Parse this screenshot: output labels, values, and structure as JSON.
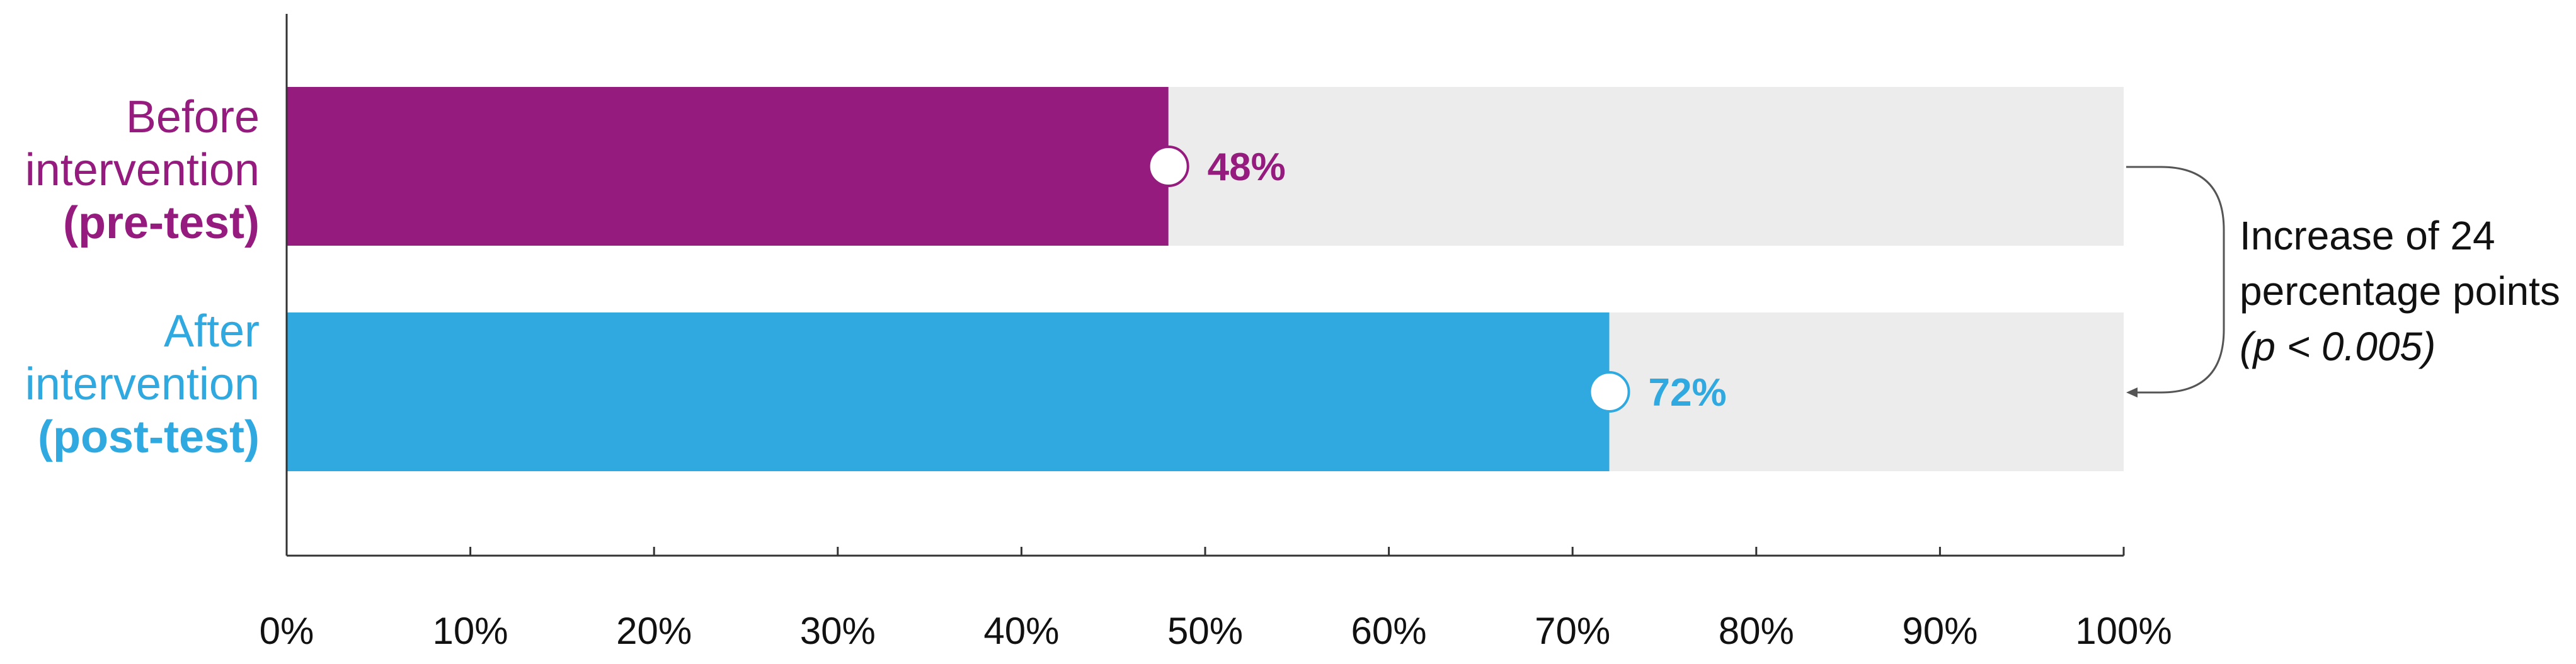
{
  "chart_data": {
    "type": "bar",
    "orientation": "horizontal",
    "categories": [
      {
        "line1": "Before",
        "line2": "intervention",
        "line3": "(pre-test)",
        "value": 48,
        "value_label": "48%",
        "color": "#951c7e"
      },
      {
        "line1": "After",
        "line2": "intervention",
        "line3": "(post-test)",
        "value": 72,
        "value_label": "72%",
        "color": "#2fa9e0"
      }
    ],
    "xlim": [
      0,
      100
    ],
    "x_ticks": [
      "0%",
      "10%",
      "20%",
      "30%",
      "40%",
      "50%",
      "60%",
      "70%",
      "80%",
      "90%",
      "100%"
    ],
    "background_bar_color": "#ececec",
    "annotation": {
      "line1": "Increase of 24",
      "line2": "percentage points",
      "line3": "(p < 0.005)"
    },
    "grid": false
  }
}
